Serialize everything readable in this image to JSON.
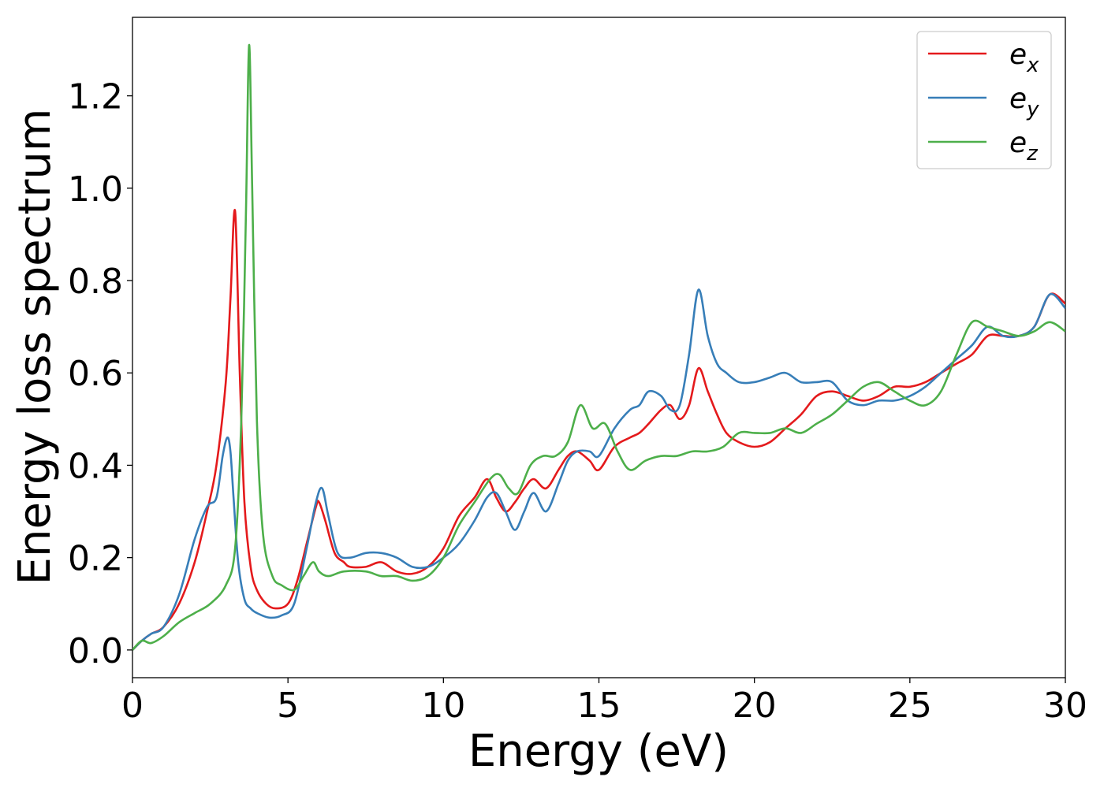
{
  "chart_data": {
    "type": "line",
    "title": "",
    "xlabel": "Energy (eV)",
    "ylabel": "Energy loss spectrum",
    "xlim": [
      0,
      30
    ],
    "ylim": [
      -0.06,
      1.37
    ],
    "xticks": [
      0,
      5,
      10,
      15,
      20,
      25,
      30
    ],
    "yticks": [
      0.0,
      0.2,
      0.4,
      0.6,
      0.8,
      1.0,
      1.2
    ],
    "xtick_labels": [
      "0",
      "5",
      "10",
      "15",
      "20",
      "25",
      "30"
    ],
    "ytick_labels": [
      "0.0",
      "0.2",
      "0.4",
      "0.6",
      "0.8",
      "1.0",
      "1.2"
    ],
    "grid": false,
    "legend_position": "top-right",
    "series": [
      {
        "name": "e_x",
        "label_base": "e",
        "label_sub": "x",
        "color": "#e41a1c",
        "x": [
          0,
          0.3,
          0.6,
          1.0,
          1.5,
          2.0,
          2.4,
          2.7,
          3.0,
          3.15,
          3.3,
          3.45,
          3.6,
          3.8,
          4.0,
          4.3,
          4.6,
          5.0,
          5.3,
          5.6,
          5.9,
          6.0,
          6.2,
          6.5,
          6.8,
          7.0,
          7.5,
          8.0,
          8.5,
          9.0,
          9.5,
          10.0,
          10.5,
          11.0,
          11.4,
          11.7,
          12.0,
          12.3,
          12.6,
          12.9,
          13.3,
          13.7,
          14.0,
          14.3,
          14.7,
          15.0,
          15.5,
          16.0,
          16.3,
          16.6,
          17.0,
          17.3,
          17.6,
          17.9,
          18.2,
          18.5,
          18.8,
          19.1,
          19.5,
          20.0,
          20.5,
          21.0,
          21.5,
          22.0,
          22.5,
          23.0,
          23.5,
          24.0,
          24.5,
          25.0,
          25.5,
          26.0,
          26.5,
          27.0,
          27.5,
          28.0,
          28.5,
          29.0,
          29.5,
          30.0
        ],
        "y": [
          0.0,
          0.02,
          0.035,
          0.05,
          0.1,
          0.19,
          0.3,
          0.4,
          0.58,
          0.76,
          0.95,
          0.6,
          0.32,
          0.18,
          0.13,
          0.1,
          0.09,
          0.1,
          0.15,
          0.23,
          0.31,
          0.32,
          0.28,
          0.21,
          0.19,
          0.18,
          0.18,
          0.19,
          0.17,
          0.165,
          0.18,
          0.22,
          0.29,
          0.33,
          0.37,
          0.33,
          0.3,
          0.32,
          0.35,
          0.37,
          0.35,
          0.39,
          0.42,
          0.43,
          0.41,
          0.39,
          0.44,
          0.46,
          0.47,
          0.49,
          0.52,
          0.53,
          0.5,
          0.53,
          0.61,
          0.56,
          0.51,
          0.47,
          0.45,
          0.44,
          0.45,
          0.48,
          0.51,
          0.55,
          0.56,
          0.55,
          0.54,
          0.55,
          0.57,
          0.57,
          0.58,
          0.6,
          0.62,
          0.64,
          0.68,
          0.68,
          0.68,
          0.7,
          0.77,
          0.75
        ]
      },
      {
        "name": "e_y",
        "label_base": "e",
        "label_sub": "y",
        "color": "#377eb8",
        "x": [
          0,
          0.3,
          0.6,
          1.0,
          1.5,
          2.0,
          2.4,
          2.7,
          2.9,
          3.05,
          3.15,
          3.25,
          3.4,
          3.6,
          3.8,
          4.0,
          4.4,
          4.8,
          5.2,
          5.6,
          5.9,
          6.1,
          6.3,
          6.6,
          7.0,
          7.5,
          8.0,
          8.5,
          9.0,
          9.5,
          10.0,
          10.5,
          11.0,
          11.4,
          11.7,
          12.0,
          12.3,
          12.6,
          12.9,
          13.3,
          13.7,
          14.0,
          14.3,
          14.7,
          15.0,
          15.5,
          16.0,
          16.3,
          16.6,
          17.0,
          17.3,
          17.6,
          17.9,
          18.2,
          18.5,
          18.8,
          19.1,
          19.5,
          20.0,
          20.5,
          21.0,
          21.5,
          22.0,
          22.5,
          23.0,
          23.5,
          24.0,
          24.5,
          25.0,
          25.5,
          26.0,
          26.5,
          27.0,
          27.5,
          28.0,
          28.5,
          29.0,
          29.5,
          30.0
        ],
        "y": [
          0.0,
          0.02,
          0.035,
          0.05,
          0.12,
          0.24,
          0.31,
          0.33,
          0.42,
          0.46,
          0.43,
          0.33,
          0.19,
          0.11,
          0.09,
          0.08,
          0.07,
          0.075,
          0.1,
          0.22,
          0.32,
          0.35,
          0.29,
          0.21,
          0.2,
          0.21,
          0.21,
          0.2,
          0.18,
          0.18,
          0.2,
          0.23,
          0.28,
          0.33,
          0.34,
          0.3,
          0.26,
          0.3,
          0.34,
          0.3,
          0.36,
          0.41,
          0.43,
          0.43,
          0.42,
          0.48,
          0.52,
          0.53,
          0.56,
          0.55,
          0.52,
          0.53,
          0.64,
          0.78,
          0.68,
          0.62,
          0.6,
          0.58,
          0.58,
          0.59,
          0.6,
          0.58,
          0.58,
          0.58,
          0.54,
          0.53,
          0.54,
          0.54,
          0.55,
          0.57,
          0.6,
          0.63,
          0.66,
          0.7,
          0.68,
          0.68,
          0.7,
          0.77,
          0.74
        ]
      },
      {
        "name": "e_z",
        "label_base": "e",
        "label_sub": "z",
        "color": "#4daf4a",
        "x": [
          0,
          0.3,
          0.6,
          1.0,
          1.5,
          2.0,
          2.5,
          3.0,
          3.3,
          3.5,
          3.65,
          3.75,
          3.85,
          4.0,
          4.2,
          4.5,
          4.8,
          5.2,
          5.5,
          5.8,
          6.0,
          6.3,
          6.8,
          7.5,
          8.0,
          8.5,
          9.0,
          9.5,
          10.0,
          10.5,
          11.0,
          11.5,
          11.8,
          12.1,
          12.4,
          12.8,
          13.2,
          13.6,
          14.0,
          14.4,
          14.8,
          15.2,
          15.6,
          16.0,
          16.5,
          17.0,
          17.5,
          18.0,
          18.5,
          19.0,
          19.5,
          20.0,
          20.5,
          21.0,
          21.5,
          22.0,
          22.5,
          23.0,
          23.5,
          24.0,
          24.5,
          25.0,
          25.5,
          26.0,
          26.5,
          27.0,
          27.5,
          28.0,
          28.5,
          29.0,
          29.5,
          30.0
        ],
        "y": [
          0.0,
          0.02,
          0.015,
          0.03,
          0.06,
          0.08,
          0.1,
          0.14,
          0.22,
          0.5,
          0.95,
          1.31,
          1.0,
          0.5,
          0.25,
          0.16,
          0.14,
          0.13,
          0.16,
          0.19,
          0.17,
          0.16,
          0.17,
          0.17,
          0.16,
          0.16,
          0.15,
          0.16,
          0.2,
          0.27,
          0.32,
          0.37,
          0.38,
          0.35,
          0.34,
          0.4,
          0.42,
          0.42,
          0.45,
          0.53,
          0.48,
          0.49,
          0.43,
          0.39,
          0.41,
          0.42,
          0.42,
          0.43,
          0.43,
          0.44,
          0.47,
          0.47,
          0.47,
          0.48,
          0.47,
          0.49,
          0.51,
          0.54,
          0.57,
          0.58,
          0.56,
          0.54,
          0.53,
          0.56,
          0.64,
          0.71,
          0.7,
          0.69,
          0.68,
          0.69,
          0.71,
          0.69
        ]
      }
    ]
  }
}
